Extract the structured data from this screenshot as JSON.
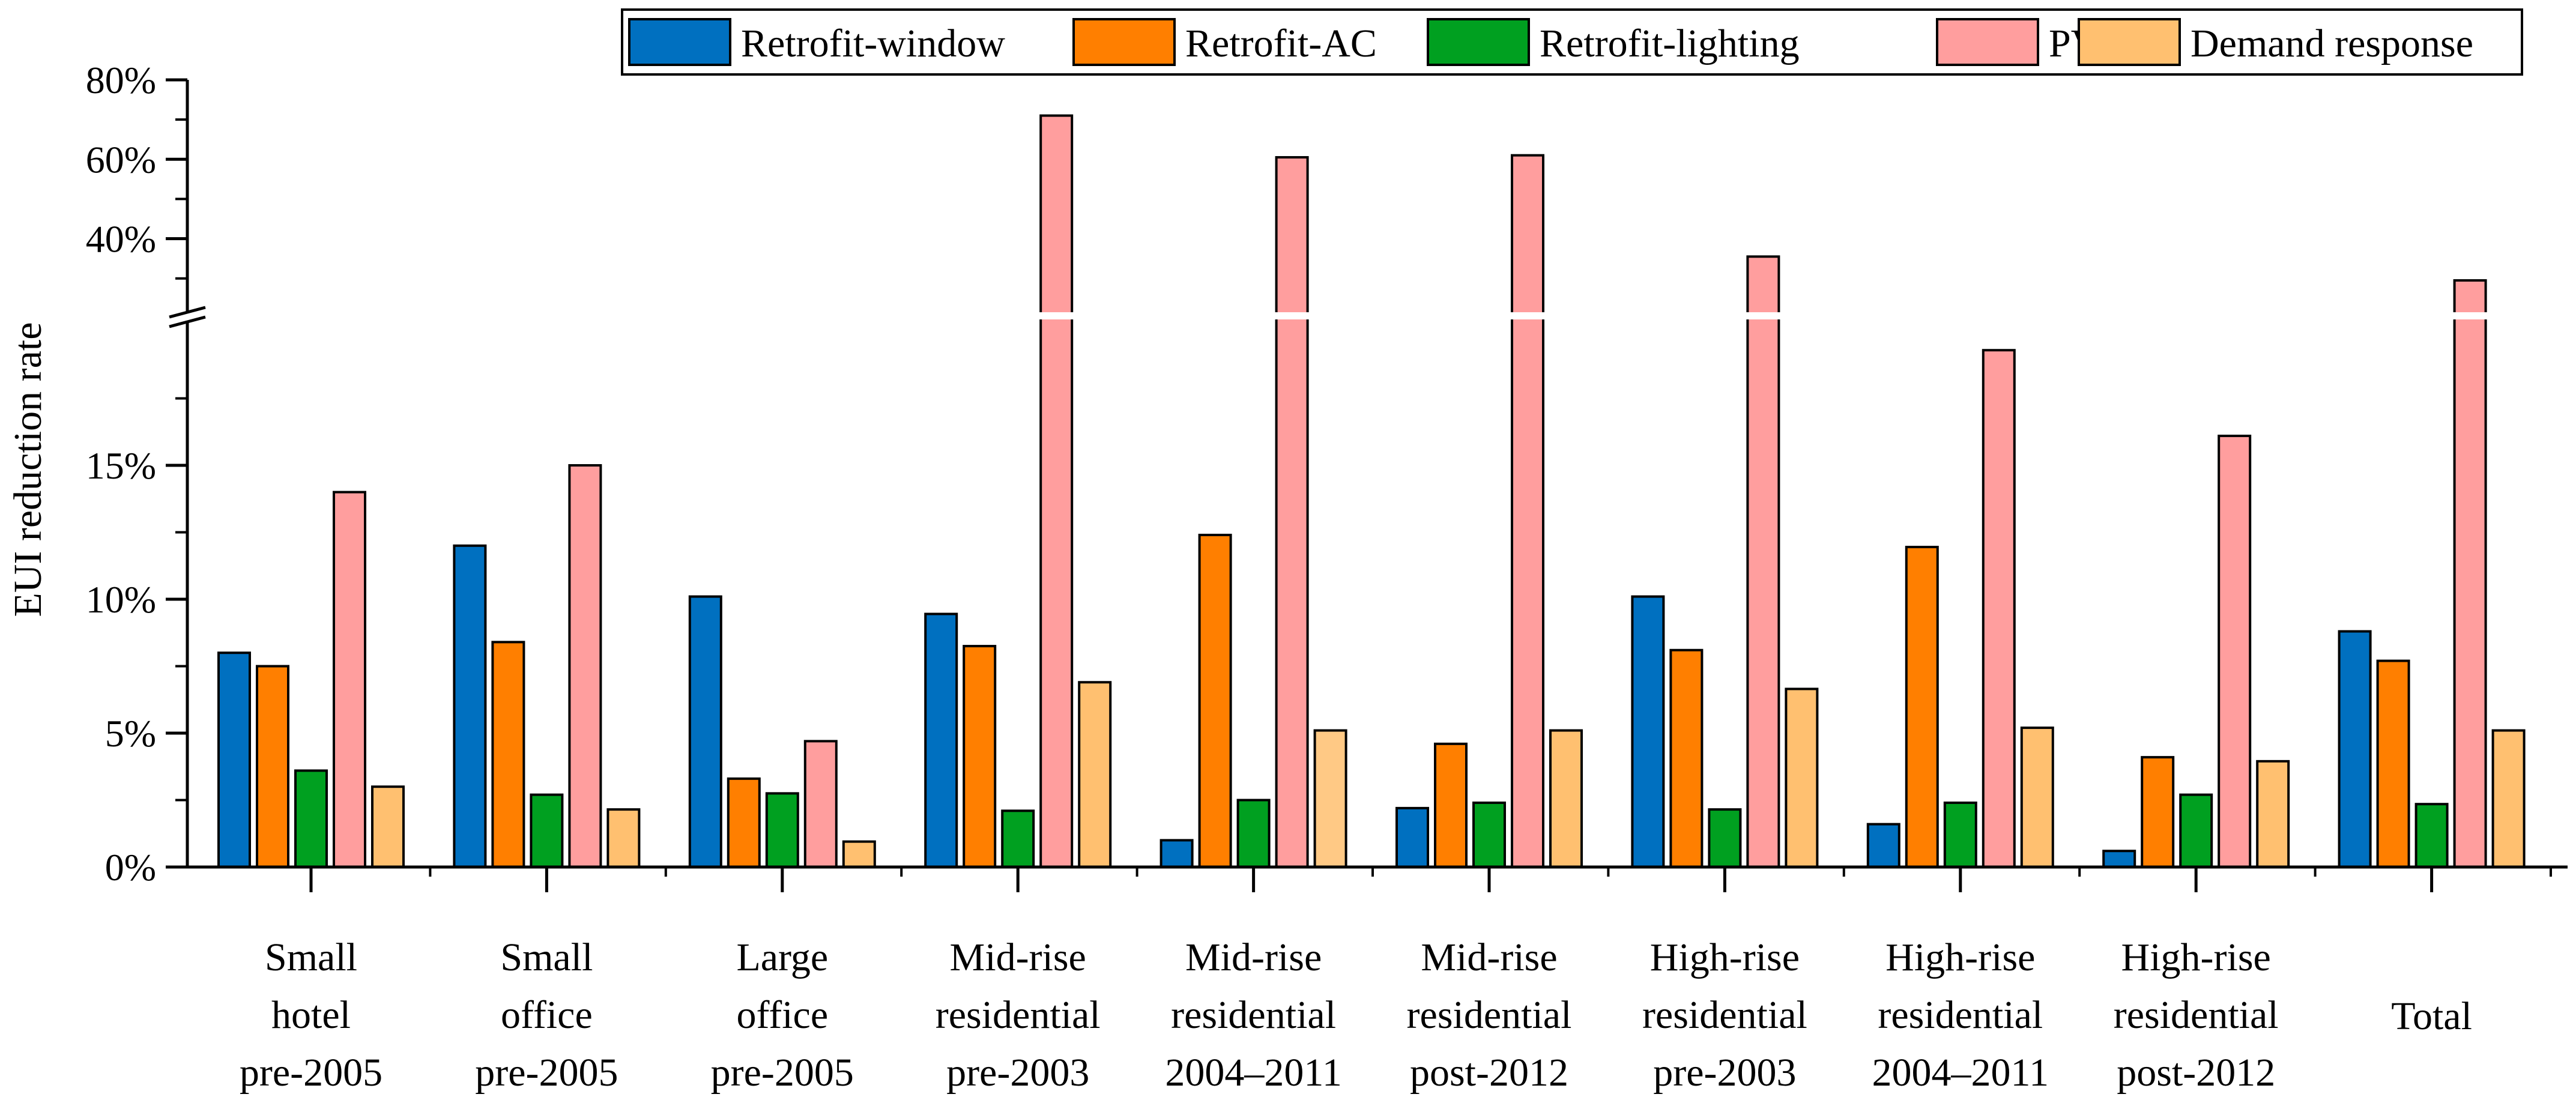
{
  "chart_data": {
    "type": "bar",
    "title": "",
    "xlabel": "",
    "ylabel": "EUI reduction rate",
    "categories": [
      [
        "Small",
        "hotel",
        "pre-2005"
      ],
      [
        "Small",
        "office",
        "pre-2005"
      ],
      [
        "Large",
        "office",
        "pre-2005"
      ],
      [
        "Mid-rise",
        "residential",
        "pre-2003"
      ],
      [
        "Mid-rise",
        "residential",
        "2004–2011"
      ],
      [
        "Mid-rise",
        "residential",
        "post-2012"
      ],
      [
        "High-rise",
        "residential",
        "pre-2003"
      ],
      [
        "High-rise",
        "residential",
        "2004–2011"
      ],
      [
        "High-rise",
        "residential",
        "post-2012"
      ],
      [
        "Total"
      ]
    ],
    "series": [
      {
        "name": "Retrofit-window",
        "color": "#0070C0",
        "values": [
          8.0,
          12.0,
          10.1,
          9.45,
          1.0,
          2.2,
          10.1,
          1.6,
          0.6,
          8.8
        ]
      },
      {
        "name": "Retrofit-AC",
        "color": "#FF7F00",
        "values": [
          7.5,
          8.4,
          3.3,
          8.25,
          12.4,
          4.6,
          8.1,
          11.95,
          4.1,
          7.7
        ]
      },
      {
        "name": "Retrofit-lighting",
        "color": "#00A020",
        "values": [
          3.6,
          2.7,
          2.75,
          2.1,
          2.5,
          2.4,
          2.15,
          2.4,
          2.7,
          2.35
        ]
      },
      {
        "name": "PV",
        "color": "#FF9E9E",
        "values": [
          14.0,
          15.0,
          4.7,
          71.0,
          60.5,
          61.0,
          35.5,
          19.3,
          16.1,
          29.5
        ]
      },
      {
        "name": "Demand response",
        "color": "#FFC070",
        "values": [
          3.0,
          2.15,
          0.95,
          6.9,
          5.1,
          5.1,
          6.65,
          5.2,
          3.95,
          5.1
        ]
      }
    ],
    "y_axis": {
      "lower_segment": {
        "range": [
          0,
          20
        ],
        "ticks": [
          "0%",
          "5%",
          "10%",
          "15%"
        ],
        "tick_values": [
          0,
          5,
          10,
          15
        ]
      },
      "upper_segment": {
        "range": [
          23,
          80
        ],
        "ticks": [
          "40%",
          "60%",
          "80%"
        ],
        "tick_values": [
          40,
          60,
          80
        ]
      },
      "broken_axis": true
    },
    "legend_position": "top-right",
    "grid": false
  }
}
